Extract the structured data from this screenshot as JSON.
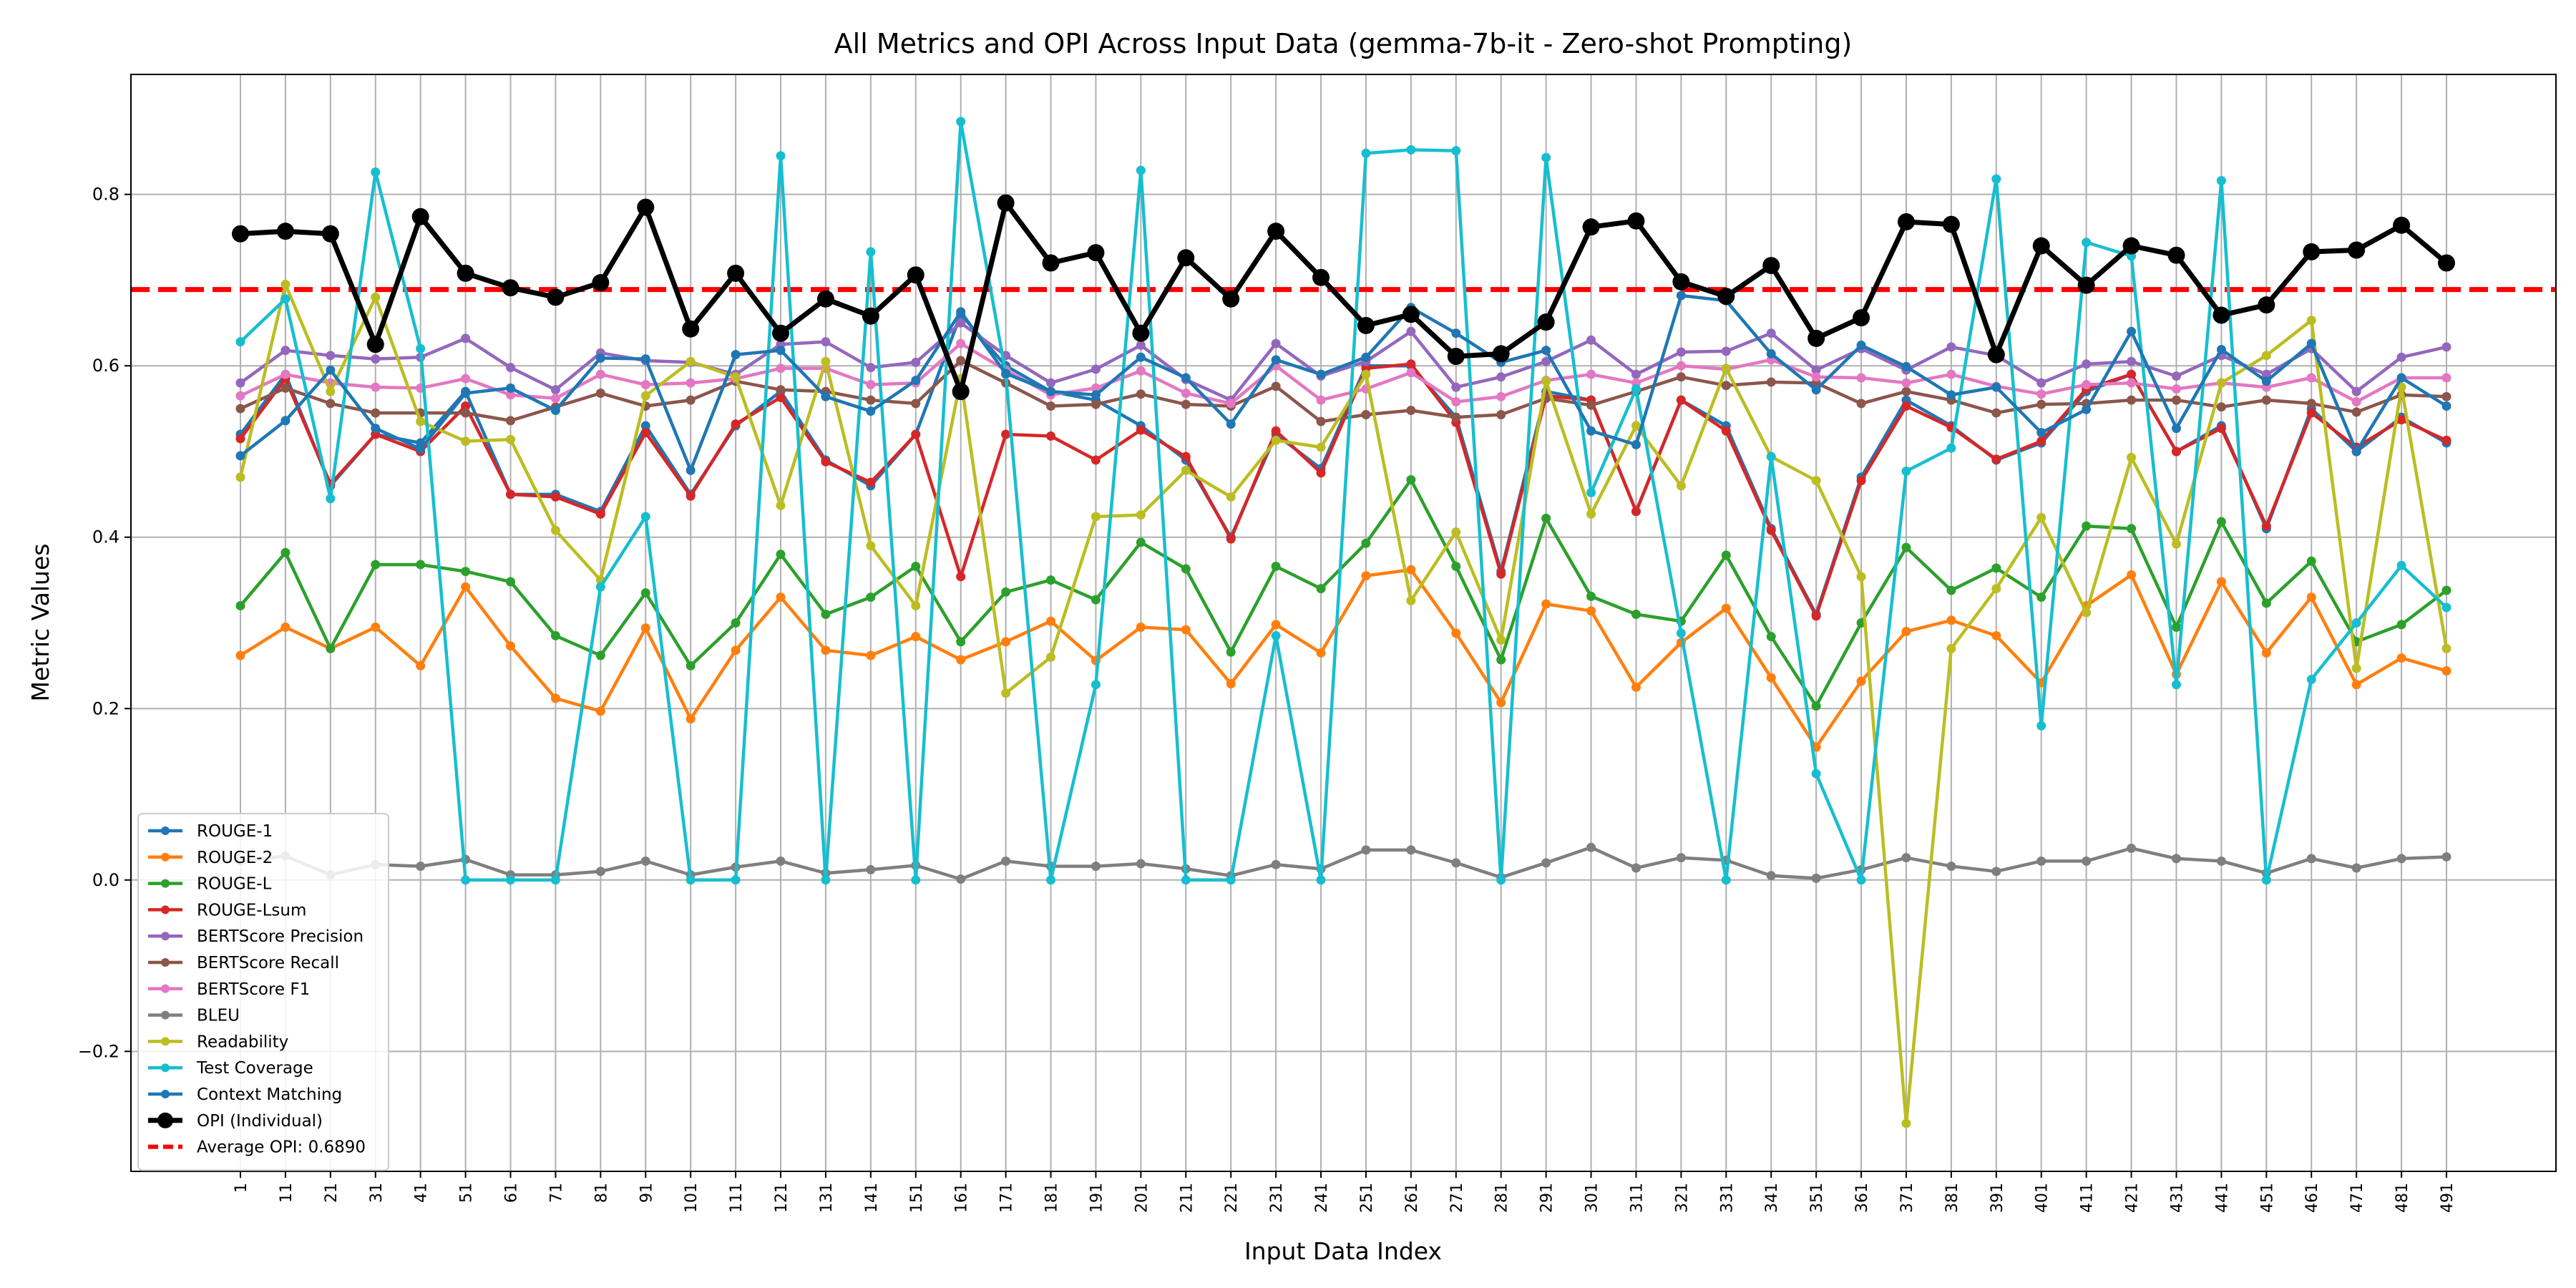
{
  "chart_data": {
    "type": "line",
    "title": "All Metrics and OPI Across Input Data (gemma-7b-it - Zero-shot Prompting)",
    "xlabel": "Input Data Index",
    "ylabel": "Metric Values",
    "ylim": [
      -0.34,
      0.94
    ],
    "yticks": [
      -0.2,
      0.0,
      0.2,
      0.4,
      0.6,
      0.8
    ],
    "ytick_labels": [
      "−0.2",
      "0.0",
      "0.2",
      "0.4",
      "0.6",
      "0.8"
    ],
    "grid": true,
    "legend_position": "lower-left",
    "x": [
      1,
      11,
      21,
      31,
      41,
      51,
      61,
      71,
      81,
      91,
      101,
      111,
      121,
      131,
      141,
      151,
      161,
      171,
      181,
      191,
      201,
      211,
      221,
      231,
      241,
      251,
      261,
      271,
      281,
      291,
      301,
      311,
      321,
      331,
      341,
      351,
      361,
      371,
      381,
      391,
      401,
      411,
      421,
      431,
      441,
      451,
      461,
      471,
      481,
      491
    ],
    "series": [
      {
        "name": "ROUGE-1",
        "color": "#1f77b4",
        "values": [
          0.52,
          0.59,
          0.46,
          0.52,
          0.51,
          0.57,
          0.45,
          0.45,
          0.43,
          0.53,
          0.45,
          0.53,
          0.57,
          0.49,
          0.46,
          0.52,
          0.66,
          0.6,
          0.57,
          0.56,
          0.53,
          0.49,
          0.4,
          0.52,
          0.48,
          0.6,
          0.6,
          0.54,
          0.36,
          0.57,
          0.56,
          0.43,
          0.56,
          0.53,
          0.41,
          0.31,
          0.47,
          0.56,
          0.53,
          0.49,
          0.51,
          0.57,
          0.59,
          0.5,
          0.53,
          0.41,
          0.55,
          0.5,
          0.54,
          0.51
        ]
      },
      {
        "name": "ROUGE-2",
        "color": "#ff7f0e",
        "values": [
          0.262,
          0.295,
          0.27,
          0.295,
          0.25,
          0.342,
          0.273,
          0.212,
          0.197,
          0.294,
          0.188,
          0.268,
          0.33,
          0.268,
          0.262,
          0.284,
          0.257,
          0.278,
          0.302,
          0.256,
          0.295,
          0.292,
          0.229,
          0.298,
          0.265,
          0.355,
          0.362,
          0.288,
          0.207,
          0.322,
          0.314,
          0.225,
          0.277,
          0.317,
          0.236,
          0.155,
          0.232,
          0.29,
          0.303,
          0.285,
          0.23,
          0.32,
          0.356,
          0.24,
          0.348,
          0.265,
          0.33,
          0.228,
          0.259,
          0.244
        ]
      },
      {
        "name": "ROUGE-L",
        "color": "#2ca02c",
        "values": [
          0.32,
          0.382,
          0.27,
          0.368,
          0.368,
          0.36,
          0.348,
          0.285,
          0.262,
          0.335,
          0.25,
          0.3,
          0.38,
          0.31,
          0.33,
          0.366,
          0.278,
          0.336,
          0.35,
          0.327,
          0.394,
          0.363,
          0.266,
          0.366,
          0.34,
          0.393,
          0.467,
          0.366,
          0.257,
          0.422,
          0.331,
          0.31,
          0.302,
          0.379,
          0.284,
          0.203,
          0.3,
          0.388,
          0.338,
          0.364,
          0.33,
          0.413,
          0.41,
          0.295,
          0.418,
          0.323,
          0.372,
          0.278,
          0.298,
          0.338
        ]
      },
      {
        "name": "ROUGE-Lsum",
        "color": "#d62728",
        "values": [
          0.515,
          0.585,
          0.462,
          0.52,
          0.5,
          0.553,
          0.45,
          0.447,
          0.427,
          0.522,
          0.448,
          0.532,
          0.563,
          0.488,
          0.464,
          0.52,
          0.354,
          0.52,
          0.518,
          0.49,
          0.525,
          0.494,
          0.398,
          0.524,
          0.475,
          0.597,
          0.602,
          0.534,
          0.357,
          0.565,
          0.56,
          0.43,
          0.56,
          0.524,
          0.408,
          0.308,
          0.466,
          0.553,
          0.528,
          0.491,
          0.512,
          0.573,
          0.59,
          0.5,
          0.527,
          0.413,
          0.545,
          0.505,
          0.537,
          0.513
        ]
      },
      {
        "name": "BERTScore Precision",
        "color": "#9467bd",
        "values": [
          0.58,
          0.618,
          0.612,
          0.608,
          0.61,
          0.632,
          0.598,
          0.572,
          0.615,
          0.606,
          0.604,
          0.59,
          0.625,
          0.628,
          0.598,
          0.604,
          0.65,
          0.612,
          0.58,
          0.596,
          0.624,
          0.584,
          0.56,
          0.626,
          0.588,
          0.605,
          0.64,
          0.575,
          0.587,
          0.605,
          0.63,
          0.59,
          0.616,
          0.617,
          0.638,
          0.595,
          0.62,
          0.595,
          0.622,
          0.612,
          0.58,
          0.602,
          0.605,
          0.588,
          0.612,
          0.59,
          0.62,
          0.57,
          0.61,
          0.622
        ]
      },
      {
        "name": "BERTScore Recall",
        "color": "#8c564b",
        "values": [
          0.55,
          0.574,
          0.556,
          0.545,
          0.545,
          0.545,
          0.536,
          0.552,
          0.568,
          0.553,
          0.56,
          0.582,
          0.572,
          0.57,
          0.56,
          0.556,
          0.606,
          0.58,
          0.553,
          0.555,
          0.567,
          0.555,
          0.553,
          0.576,
          0.535,
          0.543,
          0.548,
          0.54,
          0.543,
          0.562,
          0.554,
          0.57,
          0.587,
          0.577,
          0.581,
          0.58,
          0.556,
          0.57,
          0.56,
          0.545,
          0.555,
          0.556,
          0.56,
          0.56,
          0.552,
          0.56,
          0.556,
          0.546,
          0.566,
          0.564
        ]
      },
      {
        "name": "BERTScore F1",
        "color": "#e377c2",
        "values": [
          0.565,
          0.59,
          0.58,
          0.575,
          0.574,
          0.585,
          0.566,
          0.562,
          0.59,
          0.578,
          0.58,
          0.585,
          0.597,
          0.597,
          0.578,
          0.58,
          0.626,
          0.595,
          0.566,
          0.574,
          0.594,
          0.568,
          0.556,
          0.6,
          0.56,
          0.573,
          0.592,
          0.558,
          0.564,
          0.583,
          0.59,
          0.58,
          0.6,
          0.596,
          0.607,
          0.587,
          0.586,
          0.58,
          0.59,
          0.576,
          0.567,
          0.578,
          0.58,
          0.573,
          0.58,
          0.575,
          0.586,
          0.558,
          0.586,
          0.586
        ]
      },
      {
        "name": "BLEU",
        "color": "#7f7f7f",
        "values": [
          0.022,
          0.028,
          0.006,
          0.018,
          0.016,
          0.024,
          0.006,
          0.006,
          0.01,
          0.022,
          0.006,
          0.015,
          0.022,
          0.008,
          0.012,
          0.017,
          0.001,
          0.022,
          0.016,
          0.016,
          0.019,
          0.013,
          0.005,
          0.018,
          0.013,
          0.035,
          0.035,
          0.02,
          0.003,
          0.02,
          0.038,
          0.014,
          0.026,
          0.023,
          0.005,
          0.002,
          0.012,
          0.026,
          0.016,
          0.01,
          0.022,
          0.022,
          0.037,
          0.025,
          0.022,
          0.008,
          0.025,
          0.014,
          0.025,
          0.027
        ]
      },
      {
        "name": "Readability",
        "color": "#bcbd22",
        "values": [
          0.47,
          0.695,
          0.57,
          0.68,
          0.535,
          0.512,
          0.514,
          0.408,
          0.35,
          0.565,
          0.605,
          0.587,
          0.437,
          0.605,
          0.39,
          0.32,
          0.585,
          0.218,
          0.26,
          0.424,
          0.426,
          0.478,
          0.447,
          0.513,
          0.505,
          0.59,
          0.326,
          0.406,
          0.28,
          0.582,
          0.427,
          0.53,
          0.46,
          0.597,
          0.494,
          0.466,
          0.354,
          -0.284,
          0.27,
          0.34,
          0.423,
          0.312,
          0.493,
          0.392,
          0.58,
          0.612,
          0.653,
          0.247,
          0.575,
          0.27
        ]
      },
      {
        "name": "Test Coverage",
        "color": "#17becf",
        "values": [
          0.628,
          0.678,
          0.445,
          0.826,
          0.62,
          0.0,
          0.0,
          0.0,
          0.342,
          0.424,
          0.0,
          0.0,
          0.845,
          0.0,
          0.733,
          0.0,
          0.885,
          0.59,
          0.0,
          0.228,
          0.828,
          0.0,
          0.0,
          0.285,
          0.0,
          0.848,
          0.852,
          0.851,
          0.0,
          0.843,
          0.452,
          0.573,
          0.288,
          0.0,
          0.494,
          0.124,
          0.0,
          0.477,
          0.504,
          0.818,
          0.18,
          0.744,
          0.728,
          0.228,
          0.816,
          0.0,
          0.234,
          0.3,
          0.367,
          0.318
        ]
      },
      {
        "name": "Context Matching",
        "color": "#1f77b4",
        "values": [
          0.495,
          0.536,
          0.595,
          0.527,
          0.503,
          0.568,
          0.574,
          0.548,
          0.609,
          0.608,
          0.478,
          0.613,
          0.618,
          0.564,
          0.547,
          0.583,
          0.663,
          0.591,
          0.57,
          0.566,
          0.61,
          0.586,
          0.532,
          0.607,
          0.59,
          0.61,
          0.668,
          0.638,
          0.604,
          0.618,
          0.524,
          0.508,
          0.682,
          0.676,
          0.614,
          0.572,
          0.624,
          0.599,
          0.566,
          0.575,
          0.522,
          0.549,
          0.64,
          0.527,
          0.619,
          0.582,
          0.626,
          0.5,
          0.586,
          0.553
        ]
      },
      {
        "name": "OPI (Individual)",
        "color": "#000000",
        "values": [
          0.754,
          0.757,
          0.754,
          0.625,
          0.774,
          0.708,
          0.691,
          0.68,
          0.697,
          0.785,
          0.643,
          0.708,
          0.638,
          0.678,
          0.658,
          0.706,
          0.57,
          0.79,
          0.72,
          0.732,
          0.638,
          0.726,
          0.678,
          0.757,
          0.703,
          0.647,
          0.66,
          0.611,
          0.614,
          0.651,
          0.762,
          0.769,
          0.698,
          0.681,
          0.717,
          0.632,
          0.656,
          0.768,
          0.765,
          0.613,
          0.74,
          0.694,
          0.74,
          0.729,
          0.659,
          0.671,
          0.733,
          0.735,
          0.764,
          0.72
        ]
      }
    ],
    "reference_line": {
      "name": "Average OPI: 0.6890",
      "value": 0.689,
      "color": "#ff0000"
    }
  }
}
